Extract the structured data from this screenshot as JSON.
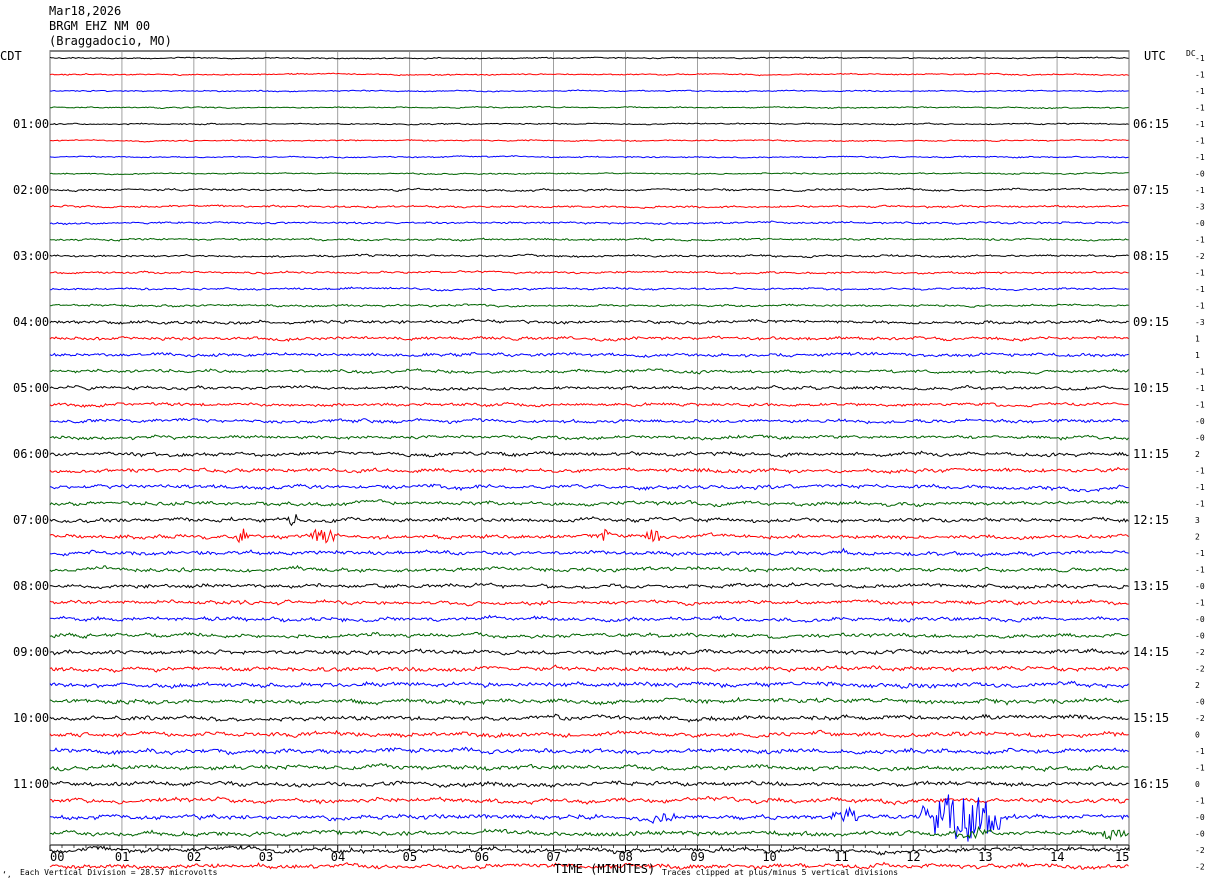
{
  "header": {
    "date": "Mar18,2026",
    "station": "BRGM EHZ NM 00",
    "location": "(Braggadocio, MO)"
  },
  "left_tz": "CDT",
  "right_tz": "UTC",
  "dc_label": "DC",
  "footer": {
    "scale_note": "Each Vertical Division =   28.57 microvolts",
    "xlabel": "TIME (MINUTES)",
    "clip_note": "Traces clipped at plus/minus 5 vertical divisions",
    "corner_mark": "‘‚"
  },
  "chart_data": {
    "type": "line",
    "title": "BRGM EHZ NM 00",
    "xlabel": "TIME (MINUTES)",
    "xlim": [
      0,
      15
    ],
    "x_ticks": [
      "00",
      "01",
      "02",
      "03",
      "04",
      "05",
      "06",
      "07",
      "08",
      "09",
      "10",
      "11",
      "12",
      "13",
      "14",
      "15"
    ],
    "grid": true,
    "trace_colors": [
      "#000000",
      "#ff0000",
      "#0000ff",
      "#006400"
    ],
    "left_hour_labels": [
      "01:00",
      "02:00",
      "03:00",
      "04:00",
      "05:00",
      "06:00",
      "07:00",
      "08:00",
      "09:00",
      "10:00",
      "11:00"
    ],
    "right_hour_labels": [
      "06:15",
      "07:15",
      "08:15",
      "09:15",
      "10:15",
      "11:15",
      "12:15",
      "13:15",
      "14:15",
      "15:15",
      "16:15"
    ],
    "trace_dc_offsets": [
      "-1",
      "-1",
      "-1",
      "-1",
      "-1",
      "-1",
      "-1",
      "-0",
      "-1",
      "-3",
      "-0",
      "-1",
      "-2",
      "-1",
      "-1",
      "-1",
      "-3",
      "1",
      "1",
      "-1",
      "-1",
      "-1",
      "-0",
      "-0",
      "2",
      "-1",
      "-1",
      "-1",
      "3",
      "2",
      "-1",
      "-1",
      "-0",
      "-1",
      "-0",
      "-0",
      "-2",
      "-2",
      "2",
      "-0",
      "-2",
      "0",
      "-1",
      "-1",
      "0",
      "-1",
      "-0",
      "-0",
      "-2",
      "-2"
    ],
    "events": [
      {
        "trace": 28,
        "minutes": [
          3.3,
          3.45
        ],
        "level": "moderate"
      },
      {
        "trace": 29,
        "minutes": [
          2.6,
          2.75
        ],
        "level": "moderate"
      },
      {
        "trace": 29,
        "minutes": [
          3.6,
          3.95
        ],
        "level": "moderate"
      },
      {
        "trace": 29,
        "minutes": [
          7.6,
          7.75
        ],
        "level": "moderate"
      },
      {
        "trace": 29,
        "minutes": [
          8.25,
          8.5
        ],
        "level": "moderate"
      },
      {
        "trace": 30,
        "minutes": [
          11.0,
          11.1
        ],
        "level": "small"
      },
      {
        "trace": 46,
        "minutes": [
          8.3,
          8.8
        ],
        "level": "small"
      },
      {
        "trace": 46,
        "minutes": [
          10.85,
          11.3
        ],
        "level": "moderate"
      },
      {
        "trace": 46,
        "minutes": [
          12.1,
          13.2
        ],
        "level": "clipped"
      },
      {
        "trace": 47,
        "minutes": [
          12.5,
          13.2
        ],
        "level": "small"
      },
      {
        "trace": 47,
        "minutes": [
          14.5,
          15.0
        ],
        "level": "small"
      }
    ]
  }
}
